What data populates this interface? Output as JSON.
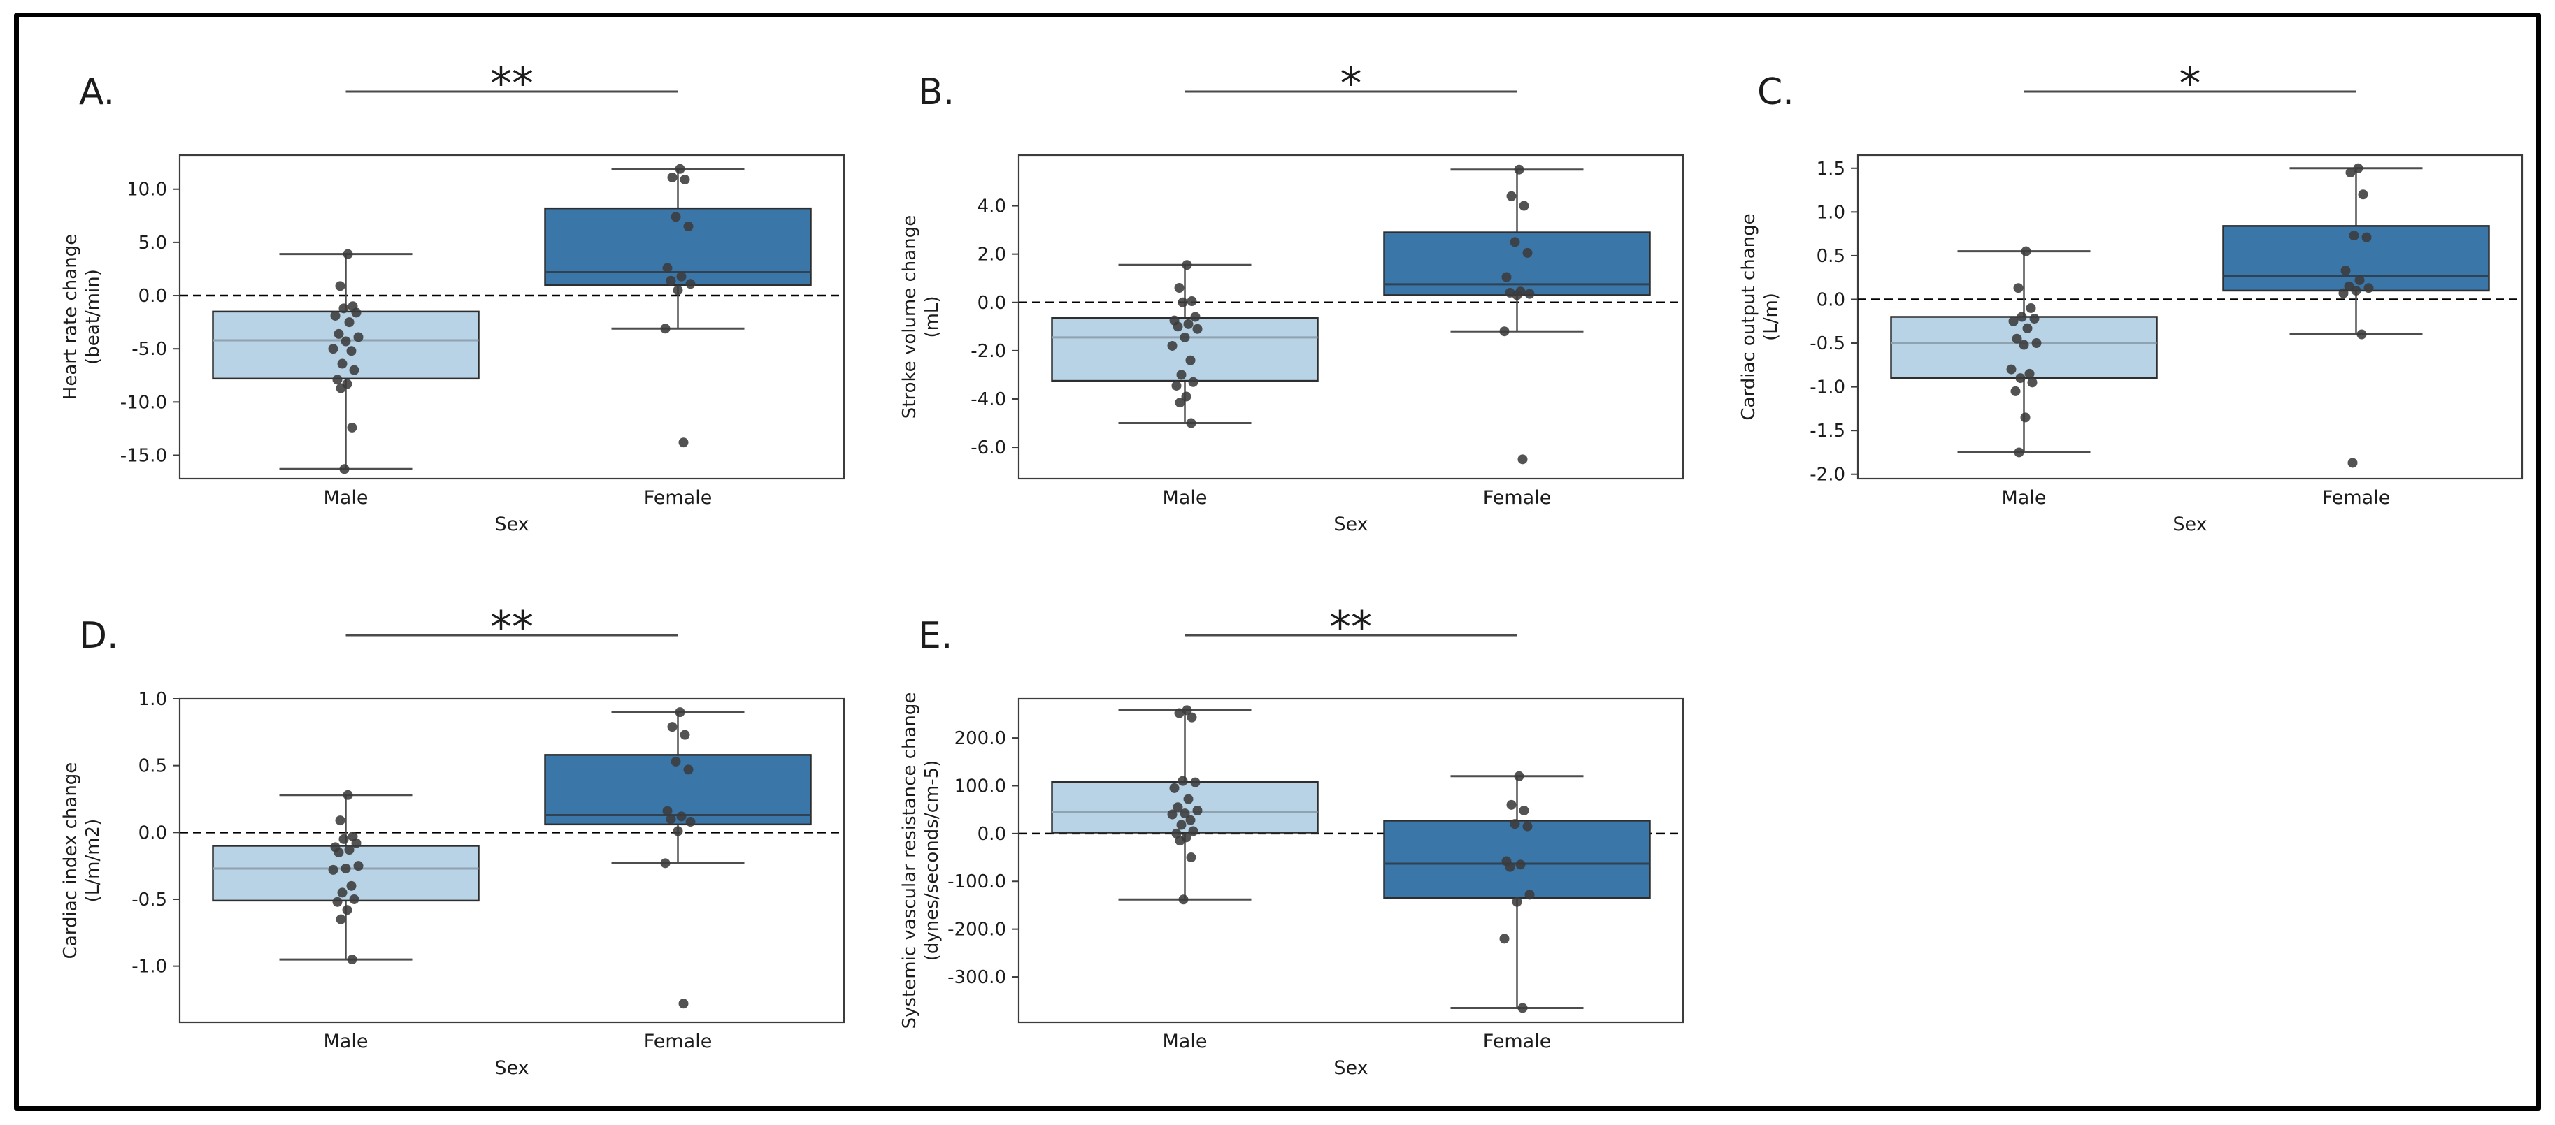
{
  "figure": {
    "title": "",
    "categories": [
      "Male",
      "Female"
    ],
    "xlabel": "Sex"
  },
  "colors": {
    "male_fill": "#b9d3e6",
    "female_fill": "#3b76a8",
    "box_edge": "#2e2e2e",
    "male_median": "#8fa2b0",
    "female_median": "#2f4254",
    "whisker": "#4d4d4d",
    "cap": "#4d4d4d",
    "point": "#3b3b3b",
    "zero_line": "#000000",
    "sig": "#4a4a4a",
    "plot_border": "#3c3c3c",
    "text": "#1c1c1c",
    "frame_border": "#000000"
  },
  "chart_data": [
    {
      "type": "box",
      "panel_label": "A.",
      "significance": "**",
      "ylabel": "Heart rate change",
      "ylabel_unit": "(beat/min)",
      "xlabel": "Sex",
      "categories": [
        "Male",
        "Female"
      ],
      "ylim": [
        -17.2,
        13.2
      ],
      "yticks": [
        10.0,
        5.0,
        0.0,
        -5.0,
        -10.0,
        -15.0
      ],
      "ytick_labels": [
        "10.0",
        "5.0",
        "0.0",
        "-5.0",
        "-10.0",
        "-15.0"
      ],
      "zero_line": 0,
      "series": [
        {
          "name": "Male",
          "fill": "male_fill",
          "median_color": "male_median",
          "whisker_low": -16.3,
          "q1": -7.8,
          "median": -4.2,
          "q3": -1.5,
          "whisker_high": 3.9,
          "points": [
            3.9,
            0.9,
            -1.0,
            -1.2,
            -1.6,
            -1.9,
            -2.5,
            -3.6,
            -3.9,
            -4.3,
            -5.0,
            -5.2,
            -6.4,
            -7.0,
            -7.9,
            -8.3,
            -8.7,
            -12.4,
            -16.3
          ]
        },
        {
          "name": "Female",
          "fill": "female_fill",
          "median_color": "female_median",
          "whisker_low": -3.1,
          "q1": 1.0,
          "median": 2.2,
          "q3": 8.2,
          "whisker_high": 11.9,
          "points": [
            11.9,
            11.1,
            10.9,
            7.4,
            6.5,
            2.6,
            1.8,
            1.4,
            1.1,
            0.5,
            -3.1,
            -13.8
          ]
        }
      ]
    },
    {
      "type": "box",
      "panel_label": "B.",
      "significance": "*",
      "ylabel": "Stroke volume change",
      "ylabel_unit": "(mL)",
      "xlabel": "Sex",
      "categories": [
        "Male",
        "Female"
      ],
      "ylim": [
        -7.3,
        6.1
      ],
      "yticks": [
        4.0,
        2.0,
        0.0,
        -2.0,
        -4.0,
        -6.0
      ],
      "ytick_labels": [
        "4.0",
        "2.0",
        "0.0",
        "-2.0",
        "-4.0",
        "-6.0"
      ],
      "zero_line": 0,
      "series": [
        {
          "name": "Male",
          "fill": "male_fill",
          "median_color": "male_median",
          "whisker_low": -5.0,
          "q1": -3.25,
          "median": -1.45,
          "q3": -0.65,
          "whisker_high": 1.55,
          "points": [
            1.55,
            0.6,
            0.05,
            0.0,
            -0.6,
            -0.75,
            -0.9,
            -1.0,
            -1.1,
            -1.45,
            -1.8,
            -2.4,
            -3.0,
            -3.3,
            -3.45,
            -3.9,
            -4.15,
            -5.0
          ]
        },
        {
          "name": "Female",
          "fill": "female_fill",
          "median_color": "female_median",
          "whisker_low": -1.2,
          "q1": 0.3,
          "median": 0.75,
          "q3": 2.9,
          "whisker_high": 5.5,
          "points": [
            5.5,
            4.4,
            4.0,
            2.5,
            2.05,
            1.05,
            0.45,
            0.4,
            0.35,
            0.3,
            -1.2,
            -6.5
          ]
        }
      ]
    },
    {
      "type": "box",
      "panel_label": "C.",
      "significance": "*",
      "ylabel": "Cardiac output change",
      "ylabel_unit": "(L/m)",
      "xlabel": "Sex",
      "categories": [
        "Male",
        "Female"
      ],
      "ylim": [
        -2.05,
        1.65
      ],
      "yticks": [
        1.5,
        1.0,
        0.5,
        0.0,
        -0.5,
        -1.0,
        -1.5,
        -2.0
      ],
      "ytick_labels": [
        "1.5",
        "1.0",
        "0.5",
        "0.0",
        "-0.5",
        "-1.0",
        "-1.5",
        "-2.0"
      ],
      "zero_line": 0,
      "series": [
        {
          "name": "Male",
          "fill": "male_fill",
          "median_color": "male_median",
          "whisker_low": -1.75,
          "q1": -0.9,
          "median": -0.5,
          "q3": -0.2,
          "whisker_high": 0.55,
          "points": [
            0.55,
            0.13,
            -0.1,
            -0.2,
            -0.22,
            -0.25,
            -0.33,
            -0.45,
            -0.5,
            -0.52,
            -0.8,
            -0.85,
            -0.9,
            -0.95,
            -1.05,
            -1.35,
            -1.75
          ]
        },
        {
          "name": "Female",
          "fill": "female_fill",
          "median_color": "female_median",
          "whisker_low": -0.4,
          "q1": 0.1,
          "median": 0.27,
          "q3": 0.84,
          "whisker_high": 1.5,
          "points": [
            1.5,
            1.45,
            1.2,
            0.73,
            0.71,
            0.33,
            0.22,
            0.15,
            0.13,
            0.1,
            0.07,
            -0.4,
            -1.87
          ]
        }
      ]
    },
    {
      "type": "box",
      "panel_label": "D.",
      "significance": "**",
      "ylabel": "Cardiac index change",
      "ylabel_unit": "(L/m/m2)",
      "xlabel": "Sex",
      "categories": [
        "Male",
        "Female"
      ],
      "ylim": [
        -1.42,
        1.0
      ],
      "yticks": [
        1.0,
        0.5,
        0.0,
        -0.5,
        -1.0
      ],
      "ytick_labels": [
        "1.0",
        "0.5",
        "0.0",
        "-0.5",
        "-1.0"
      ],
      "zero_line": 0,
      "series": [
        {
          "name": "Male",
          "fill": "male_fill",
          "median_color": "male_median",
          "whisker_low": -0.95,
          "q1": -0.51,
          "median": -0.27,
          "q3": -0.1,
          "whisker_high": 0.28,
          "points": [
            0.28,
            0.09,
            -0.03,
            -0.05,
            -0.08,
            -0.11,
            -0.13,
            -0.15,
            -0.25,
            -0.27,
            -0.28,
            -0.4,
            -0.45,
            -0.5,
            -0.52,
            -0.58,
            -0.65,
            -0.95
          ]
        },
        {
          "name": "Female",
          "fill": "female_fill",
          "median_color": "female_median",
          "whisker_low": -0.23,
          "q1": 0.06,
          "median": 0.13,
          "q3": 0.58,
          "whisker_high": 0.9,
          "points": [
            0.9,
            0.79,
            0.73,
            0.53,
            0.47,
            0.16,
            0.12,
            0.1,
            0.08,
            0.01,
            -0.23,
            -1.28
          ]
        }
      ]
    },
    {
      "type": "box",
      "panel_label": "E.",
      "significance": "**",
      "ylabel": "Systemic vascular resistance change",
      "ylabel_unit": "(dynes/seconds/cm-5)",
      "xlabel": "Sex",
      "categories": [
        "Male",
        "Female"
      ],
      "ylim": [
        -395,
        282
      ],
      "yticks": [
        200,
        100,
        0,
        -100,
        -200,
        -300
      ],
      "ytick_labels": [
        "200.0",
        "100.0",
        "0.0",
        "-100.0",
        "-200.0",
        "-300.0"
      ],
      "zero_line": 0,
      "series": [
        {
          "name": "Male",
          "fill": "male_fill",
          "median_color": "male_median",
          "whisker_low": -138,
          "q1": 2,
          "median": 45,
          "q3": 108,
          "whisker_high": 258,
          "points": [
            258,
            252,
            243,
            110,
            107,
            95,
            72,
            55,
            48,
            42,
            40,
            28,
            18,
            5,
            0,
            -8,
            -15,
            -50,
            -138
          ]
        },
        {
          "name": "Female",
          "fill": "female_fill",
          "median_color": "female_median",
          "whisker_low": -365,
          "q1": -135,
          "median": -63,
          "q3": 27,
          "whisker_high": 120,
          "points": [
            120,
            60,
            48,
            20,
            15,
            -58,
            -65,
            -70,
            -128,
            -143,
            -220,
            -365
          ]
        }
      ]
    }
  ]
}
